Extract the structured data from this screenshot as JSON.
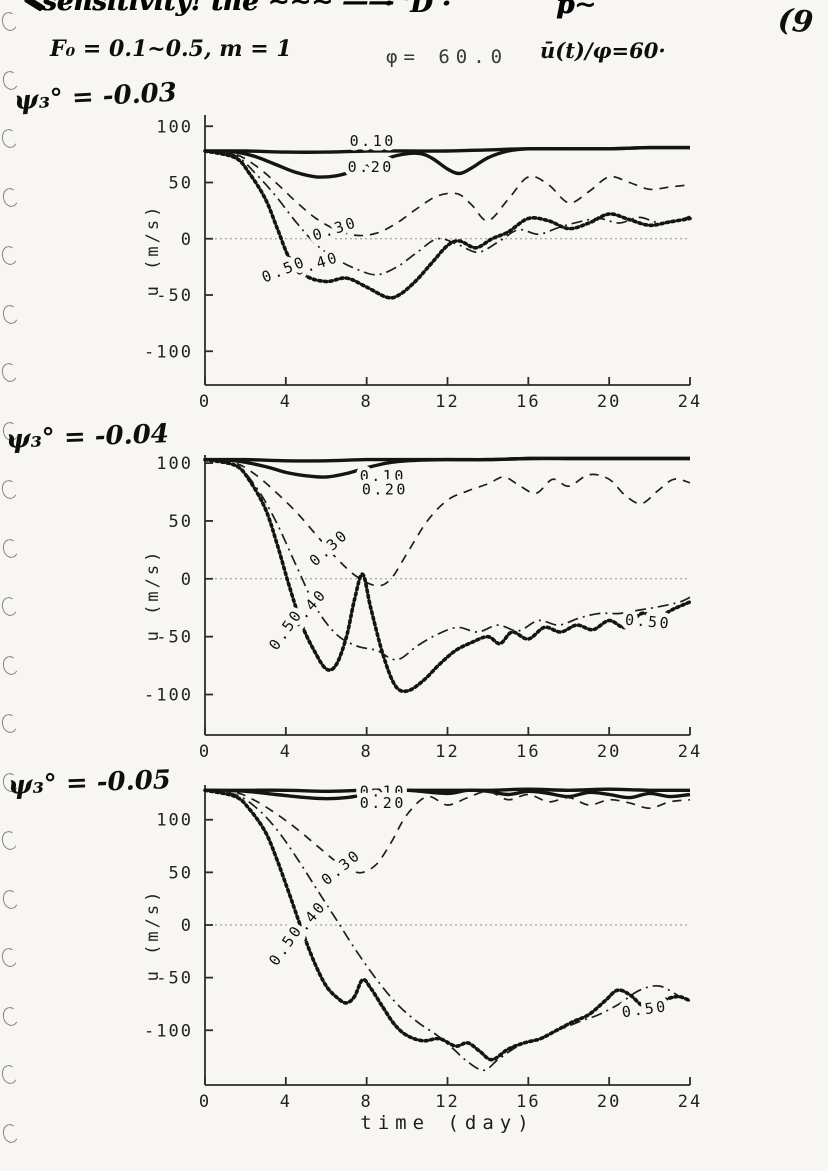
{
  "page": {
    "number": "(9",
    "scrawl_left": "sensitivity! the ∼∼∼ ——",
    "scrawl_mid": "· 'D ·",
    "scrawl_right": "p∼",
    "params": "F₀ = 0.1~0.5,  m = 1",
    "phi": "φ= 60.0",
    "ubar": "ū(t)/φ=60·"
  },
  "chart_data": [
    {
      "type": "line",
      "title": "ψ₃° = -0.03",
      "xlabel": "",
      "ylabel": "u (m/s)",
      "xlim": [
        0,
        24
      ],
      "ylim": [
        -130,
        110
      ],
      "xticks": [
        0,
        4,
        8,
        12,
        16,
        20,
        24
      ],
      "yticks": [
        100,
        50,
        0,
        -50,
        -100
      ],
      "grid": false,
      "legend": "inline-curve-labels",
      "series": [
        {
          "name": "0.10",
          "style": "solid-thick",
          "x": [
            0,
            2,
            4,
            6,
            8,
            10,
            12,
            14,
            16,
            18,
            20,
            22,
            24
          ],
          "y": [
            78,
            78,
            77,
            77,
            78,
            78,
            78,
            79,
            80,
            80,
            80,
            81,
            81
          ]
        },
        {
          "name": "0.20",
          "style": "solid-thick",
          "x": [
            0,
            1.5,
            2.5,
            3.5,
            4.5,
            5.5,
            6.5,
            7.5,
            8.5,
            9.5,
            10.5,
            11.2,
            12,
            12.6,
            13.2,
            14,
            15,
            16,
            18,
            20,
            22,
            24
          ],
          "y": [
            78,
            77,
            73,
            66,
            59,
            55,
            56,
            61,
            68,
            74,
            76,
            72,
            62,
            58,
            63,
            72,
            78,
            80,
            80,
            80,
            81,
            81
          ]
        },
        {
          "name": "0.30",
          "style": "dashed",
          "x": [
            0,
            1.5,
            2.5,
            3.5,
            4.5,
            5.5,
            6.5,
            7.5,
            8.5,
            9.5,
            10.5,
            11.5,
            12.5,
            13.2,
            14,
            15,
            16,
            17,
            18,
            19,
            20,
            21,
            22,
            23,
            24
          ],
          "y": [
            78,
            75,
            65,
            50,
            33,
            18,
            8,
            3,
            5,
            14,
            27,
            38,
            40,
            30,
            16,
            35,
            55,
            48,
            32,
            42,
            55,
            50,
            44,
            46,
            48
          ]
        },
        {
          "name": "0.40",
          "style": "dashdot",
          "x": [
            0,
            1.5,
            2.5,
            3.5,
            4.5,
            5.5,
            6.5,
            7.5,
            8.5,
            9.5,
            10.5,
            11.5,
            12.5,
            13.5,
            14.5,
            15.5,
            16.5,
            17.5,
            18.5,
            19.5,
            20.5,
            21.5,
            22.5,
            23.5,
            24
          ],
          "y": [
            78,
            74,
            58,
            38,
            15,
            -5,
            -18,
            -27,
            -32,
            -25,
            -12,
            0,
            -5,
            -12,
            -3,
            8,
            4,
            10,
            15,
            18,
            14,
            19,
            14,
            17,
            20
          ]
        },
        {
          "name": "0.50",
          "style": "dotted-thick",
          "x": [
            0,
            1.5,
            2.2,
            3,
            3.6,
            4.2,
            5,
            6,
            7,
            8,
            9,
            9.6,
            10.4,
            11.2,
            12,
            12.6,
            13.4,
            14.2,
            15,
            16,
            17,
            18,
            19,
            20,
            21,
            22,
            23,
            24
          ],
          "y": [
            78,
            72,
            58,
            35,
            8,
            -18,
            -33,
            -38,
            -35,
            -43,
            -52,
            -50,
            -38,
            -22,
            -6,
            -2,
            -8,
            0,
            6,
            18,
            16,
            9,
            14,
            22,
            17,
            12,
            15,
            18
          ]
        }
      ],
      "labels": [
        {
          "text": "0.10",
          "x": 8.3,
          "y": 87,
          "rot": 0
        },
        {
          "text": "0.20",
          "x": 8.2,
          "y": 64,
          "rot": 0
        },
        {
          "text": "0.30",
          "x": 6.5,
          "y": 9,
          "rot": -18
        },
        {
          "text": "0.40",
          "x": 5.6,
          "y": -22,
          "rot": -18
        },
        {
          "text": "0.50",
          "x": 4.0,
          "y": -27,
          "rot": -22
        }
      ]
    },
    {
      "type": "line",
      "title": "ψ₃° = -0.04",
      "xlabel": "",
      "ylabel": "u (m/s)",
      "xlim": [
        0,
        24
      ],
      "ylim": [
        -135,
        107
      ],
      "xticks": [
        0,
        4,
        8,
        12,
        16,
        20,
        24
      ],
      "yticks": [
        100,
        50,
        0,
        -50,
        -100
      ],
      "grid": false,
      "legend": "inline-curve-labels",
      "series": [
        {
          "name": "0.10",
          "style": "solid-thick",
          "x": [
            0,
            2,
            4,
            6,
            8,
            10,
            12,
            14,
            16,
            18,
            20,
            22,
            24
          ],
          "y": [
            103,
            103,
            102,
            102,
            103,
            103,
            103,
            103,
            104,
            104,
            104,
            104,
            104
          ]
        },
        {
          "name": "0.20",
          "style": "solid-thick",
          "x": [
            0,
            1.5,
            3,
            4,
            5,
            6,
            7,
            8,
            9,
            10,
            12,
            14,
            16,
            18,
            20,
            22,
            24
          ],
          "y": [
            103,
            102,
            97,
            92,
            89,
            88,
            91,
            96,
            100,
            102,
            103,
            103,
            104,
            104,
            104,
            104,
            104
          ]
        },
        {
          "name": "0.30",
          "style": "dashed",
          "x": [
            0,
            1.5,
            2.5,
            3.5,
            4.5,
            5.5,
            6.5,
            7.5,
            8.5,
            9.2,
            10,
            11,
            12,
            13,
            14,
            14.8,
            15.6,
            16.4,
            17.2,
            18,
            19,
            20,
            20.8,
            21.6,
            22.4,
            23.2,
            24
          ],
          "y": [
            103,
            100,
            90,
            75,
            58,
            38,
            18,
            2,
            -6,
            0,
            22,
            50,
            68,
            76,
            82,
            88,
            80,
            74,
            86,
            80,
            90,
            86,
            72,
            65,
            76,
            86,
            83
          ]
        },
        {
          "name": "0.40",
          "style": "dashdot",
          "x": [
            0,
            1.5,
            2.5,
            3.5,
            4.5,
            5.5,
            6.5,
            7.5,
            8.5,
            9.5,
            10.5,
            11.5,
            12.5,
            13.5,
            14.5,
            15.5,
            16.5,
            17.5,
            18.5,
            19.5,
            20.5,
            21.5,
            22.5,
            23.5,
            24
          ],
          "y": [
            103,
            98,
            80,
            50,
            12,
            -25,
            -48,
            -58,
            -62,
            -70,
            -58,
            -48,
            -42,
            -46,
            -40,
            -45,
            -36,
            -40,
            -34,
            -30,
            -30,
            -27,
            -24,
            -20,
            -16
          ]
        },
        {
          "name": "0.50",
          "style": "dotted-thick",
          "x": [
            0,
            1.5,
            2.2,
            3,
            3.6,
            4.2,
            4.8,
            5.4,
            6,
            6.5,
            7,
            7.4,
            7.8,
            8.2,
            8.8,
            9.4,
            10,
            10.8,
            11.6,
            12.4,
            13.2,
            14,
            14.6,
            15.2,
            16,
            16.8,
            17.6,
            18.4,
            19.2,
            20,
            20.8,
            21.6,
            22.4,
            23.2,
            24
          ],
          "y": [
            103,
            98,
            85,
            60,
            28,
            -8,
            -40,
            -62,
            -78,
            -74,
            -50,
            -18,
            4,
            -25,
            -65,
            -92,
            -97,
            -88,
            -74,
            -62,
            -55,
            -50,
            -56,
            -46,
            -52,
            -42,
            -46,
            -40,
            -44,
            -36,
            -42,
            -30,
            -33,
            -26,
            -20
          ]
        }
      ],
      "labels": [
        {
          "text": "0.10",
          "x": 8.8,
          "y": 89,
          "rot": 0
        },
        {
          "text": "0.20",
          "x": 8.9,
          "y": 77,
          "rot": 0
        },
        {
          "text": "0.30",
          "x": 6.3,
          "y": 28,
          "rot": -42
        },
        {
          "text": "0.40",
          "x": 5.3,
          "y": -24,
          "rot": -48
        },
        {
          "text": "0.50",
          "x": 4.2,
          "y": -42,
          "rot": -55
        },
        {
          "text": "0.50",
          "x": 21.9,
          "y": -37,
          "rot": 5
        }
      ]
    },
    {
      "type": "line",
      "title": "ψ₃° = -0.05",
      "xlabel": "time (day)",
      "ylabel": "u (m/s)",
      "xlim": [
        0,
        24
      ],
      "ylim": [
        -152,
        133
      ],
      "xticks": [
        0,
        4,
        8,
        12,
        16,
        20,
        24
      ],
      "yticks": [
        100,
        50,
        0,
        -50,
        -100
      ],
      "grid": false,
      "legend": "inline-curve-labels",
      "series": [
        {
          "name": "0.10",
          "style": "solid-thick",
          "x": [
            0,
            2,
            4,
            6,
            8,
            10,
            12,
            14,
            16,
            18,
            20,
            22,
            24
          ],
          "y": [
            128,
            128,
            128,
            127,
            128,
            128,
            128,
            128,
            129,
            128,
            129,
            128,
            128
          ]
        },
        {
          "name": "0.20",
          "style": "solid-thick",
          "x": [
            0,
            2,
            3.5,
            5,
            6,
            7,
            8,
            9,
            10,
            12,
            13,
            14,
            15,
            16,
            17,
            18,
            19,
            20,
            21,
            22,
            23,
            24
          ],
          "y": [
            128,
            127,
            124,
            121,
            120,
            121,
            124,
            127,
            128,
            125,
            128,
            127,
            124,
            127,
            125,
            122,
            126,
            124,
            121,
            125,
            122,
            124
          ]
        },
        {
          "name": "0.30",
          "style": "dashed",
          "x": [
            0,
            1.5,
            2.5,
            3.5,
            4.5,
            5.5,
            6.5,
            7.2,
            7.8,
            8.5,
            9.2,
            10,
            11,
            12,
            13,
            14,
            15,
            16,
            17,
            18,
            19,
            20,
            21,
            22,
            23,
            24
          ],
          "y": [
            128,
            126,
            118,
            106,
            92,
            76,
            60,
            52,
            50,
            58,
            78,
            105,
            122,
            114,
            121,
            127,
            119,
            124,
            117,
            121,
            114,
            119,
            116,
            111,
            117,
            119
          ]
        },
        {
          "name": "0.40",
          "style": "dashdot",
          "x": [
            0,
            1.5,
            2.5,
            3.5,
            4.5,
            5.5,
            6.5,
            7.5,
            8.5,
            9.5,
            10.5,
            11.5,
            12.3,
            13,
            13.8,
            14.5,
            15.5,
            16.5,
            17.5,
            18.5,
            19.5,
            20.5,
            21.5,
            22.5,
            23.5,
            24
          ],
          "y": [
            128,
            124,
            112,
            92,
            65,
            35,
            5,
            -25,
            -52,
            -75,
            -92,
            -105,
            -118,
            -130,
            -138,
            -128,
            -115,
            -108,
            -100,
            -92,
            -85,
            -75,
            -62,
            -58,
            -68,
            -72
          ]
        },
        {
          "name": "0.50",
          "style": "dotted-thick",
          "x": [
            0,
            1.5,
            2.2,
            3,
            3.6,
            4.2,
            4.8,
            5.4,
            6,
            6.6,
            7,
            7.4,
            7.8,
            8.2,
            8.8,
            9.4,
            10,
            10.8,
            11.6,
            12.4,
            13,
            13.6,
            14.2,
            15,
            15.8,
            16.6,
            17.4,
            18.2,
            19,
            19.8,
            20.4,
            21,
            21.8,
            22.6,
            23.4,
            24
          ],
          "y": [
            128,
            122,
            110,
            88,
            60,
            28,
            -5,
            -35,
            -58,
            -70,
            -74,
            -68,
            -52,
            -60,
            -78,
            -95,
            -105,
            -110,
            -108,
            -115,
            -112,
            -120,
            -128,
            -118,
            -112,
            -108,
            -100,
            -92,
            -85,
            -72,
            -62,
            -66,
            -78,
            -72,
            -68,
            -72
          ]
        }
      ],
      "labels": [
        {
          "text": "0.10",
          "x": 8.8,
          "y": 127,
          "rot": 0
        },
        {
          "text": "0.20",
          "x": 8.8,
          "y": 116,
          "rot": 0
        },
        {
          "text": "0.30",
          "x": 6.9,
          "y": 56,
          "rot": -40
        },
        {
          "text": "0.40",
          "x": 5.3,
          "y": 6,
          "rot": -50
        },
        {
          "text": "0.50",
          "x": 4.2,
          "y": -17,
          "rot": -55
        },
        {
          "text": "0.50",
          "x": 21.8,
          "y": -80,
          "rot": -8
        }
      ]
    }
  ]
}
